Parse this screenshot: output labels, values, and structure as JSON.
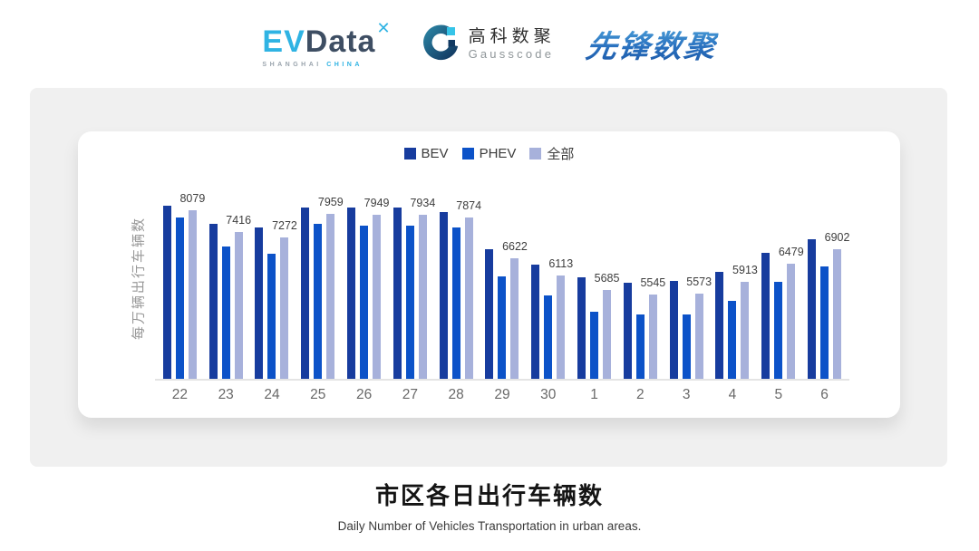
{
  "header": {
    "evdata": {
      "ev": "EV",
      "data": "Data",
      "sup": "✕",
      "tagline_left": "SHANGHAI",
      "tagline_right": "CHINA"
    },
    "gausscode": {
      "cn": "高科数聚",
      "en": "Gausscode"
    },
    "pioneer": {
      "text": "先锋数聚"
    }
  },
  "chart": {
    "y_axis_label": "每万辆出行车辆数",
    "legend": [
      {
        "label": "BEV",
        "color": "#173C9E"
      },
      {
        "label": "PHEV",
        "color": "#0C52C8"
      },
      {
        "label": "全部",
        "color": "#A7B1DB"
      }
    ]
  },
  "chart_data": {
    "type": "bar",
    "title": "市区各日出行车辆数",
    "ylabel": "每万辆出行车辆数",
    "categories": [
      "22",
      "23",
      "24",
      "25",
      "26",
      "27",
      "28",
      "29",
      "30",
      "1",
      "2",
      "3",
      "4",
      "5",
      "6"
    ],
    "series": [
      {
        "name": "BEV",
        "color": "#173C9E",
        "values": [
          8220,
          7680,
          7570,
          8170,
          8150,
          8150,
          8040,
          6920,
          6440,
          6070,
          5900,
          5940,
          6220,
          6790,
          7220
        ],
        "note": "values estimated from bar heights (unlabeled)"
      },
      {
        "name": "PHEV",
        "color": "#0C52C8",
        "values": [
          7860,
          6980,
          6780,
          7660,
          7630,
          7610,
          7570,
          6100,
          5520,
          5030,
          4930,
          4930,
          5360,
          5930,
          6380
        ],
        "note": "values estimated from bar heights (unlabeled)"
      },
      {
        "name": "全部",
        "color": "#A7B1DB",
        "values": [
          8079,
          7416,
          7272,
          7959,
          7949,
          7934,
          7874,
          6622,
          6113,
          5685,
          5545,
          5573,
          5913,
          6479,
          6902
        ],
        "note": "values shown as data labels above bars"
      }
    ],
    "value_labels_series": "全部",
    "ylim": [
      3000,
      8600
    ],
    "grid": false,
    "legend_position": "top-center"
  },
  "footer": {
    "title": "市区各日出行车辆数",
    "subtitle": "Daily Number of Vehicles Transportation in urban areas."
  },
  "colors": {
    "panel_bg": "#f0f0f0",
    "card_bg": "#ffffff",
    "axis_line": "#e4e4e4",
    "evdata_cyan": "#2fb3e3",
    "evdata_dark": "#3e4e63",
    "pioneer_blue": "#2a72c0"
  }
}
